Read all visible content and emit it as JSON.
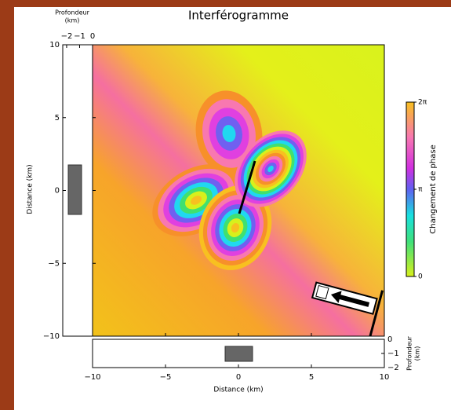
{
  "chart_data": {
    "type": "heatmap",
    "title": "Interférogramme",
    "xlabel": "Distance (km)",
    "ylabel": "Distance (km)",
    "xlim": [
      -10,
      10
    ],
    "ylim": [
      -10,
      10
    ],
    "xticks": [
      {
        "value": -10,
        "label": "−10"
      },
      {
        "value": -5,
        "label": "−5"
      },
      0,
      5,
      10
    ],
    "yticks": [
      {
        "value": -10,
        "label": "−10"
      },
      {
        "value": -5,
        "label": "−5"
      },
      0,
      5,
      10
    ],
    "depth_left": {
      "label": [
        "Profondeur",
        "(km)"
      ],
      "lim": [
        -2.3,
        0
      ],
      "ticks": [
        {
          "value": -2,
          "label": "−2"
        },
        {
          "value": -1,
          "label": "−1"
        },
        0
      ]
    },
    "depth_bottom": {
      "label": [
        "Profondeur",
        "(km)"
      ],
      "lim": [
        -2,
        0
      ],
      "ticks": [
        0,
        {
          "value": -1,
          "label": "−1"
        },
        {
          "value": -2,
          "label": "−2"
        }
      ]
    },
    "colorbar": {
      "label": "Changement de phase",
      "lim": [
        0,
        6.2832
      ],
      "ticks": [
        0,
        {
          "value": 3.1416,
          "label": "π"
        },
        {
          "value": 6.2832,
          "label": "2π"
        }
      ]
    }
  }
}
